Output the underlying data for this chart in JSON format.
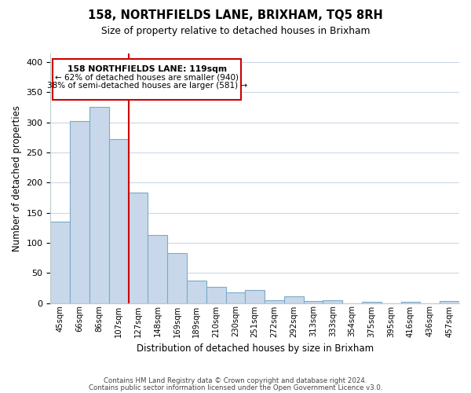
{
  "title": "158, NORTHFIELDS LANE, BRIXHAM, TQ5 8RH",
  "subtitle": "Size of property relative to detached houses in Brixham",
  "xlabel": "Distribution of detached houses by size in Brixham",
  "ylabel": "Number of detached properties",
  "categories": [
    "45sqm",
    "66sqm",
    "86sqm",
    "107sqm",
    "127sqm",
    "148sqm",
    "169sqm",
    "189sqm",
    "210sqm",
    "230sqm",
    "251sqm",
    "272sqm",
    "292sqm",
    "313sqm",
    "333sqm",
    "354sqm",
    "375sqm",
    "395sqm",
    "416sqm",
    "436sqm",
    "457sqm"
  ],
  "values": [
    135,
    302,
    325,
    272,
    183,
    113,
    83,
    37,
    27,
    17,
    22,
    5,
    11,
    3,
    5,
    0,
    2,
    0,
    2,
    0,
    3
  ],
  "bar_color": "#c8d8ea",
  "bar_edge_color": "#7aaac8",
  "vline_x_index": 3,
  "vline_color": "#cc0000",
  "annotation_title": "158 NORTHFIELDS LANE: 119sqm",
  "annotation_line1": "← 62% of detached houses are smaller (940)",
  "annotation_line2": "38% of semi-detached houses are larger (581) →",
  "ylim": [
    0,
    415
  ],
  "yticks": [
    0,
    50,
    100,
    150,
    200,
    250,
    300,
    350,
    400
  ],
  "footer_line1": "Contains HM Land Registry data © Crown copyright and database right 2024.",
  "footer_line2": "Contains public sector information licensed under the Open Government Licence v3.0.",
  "bg_color": "#ffffff",
  "grid_color": "#ccd8e4",
  "box_color": "#cc0000"
}
